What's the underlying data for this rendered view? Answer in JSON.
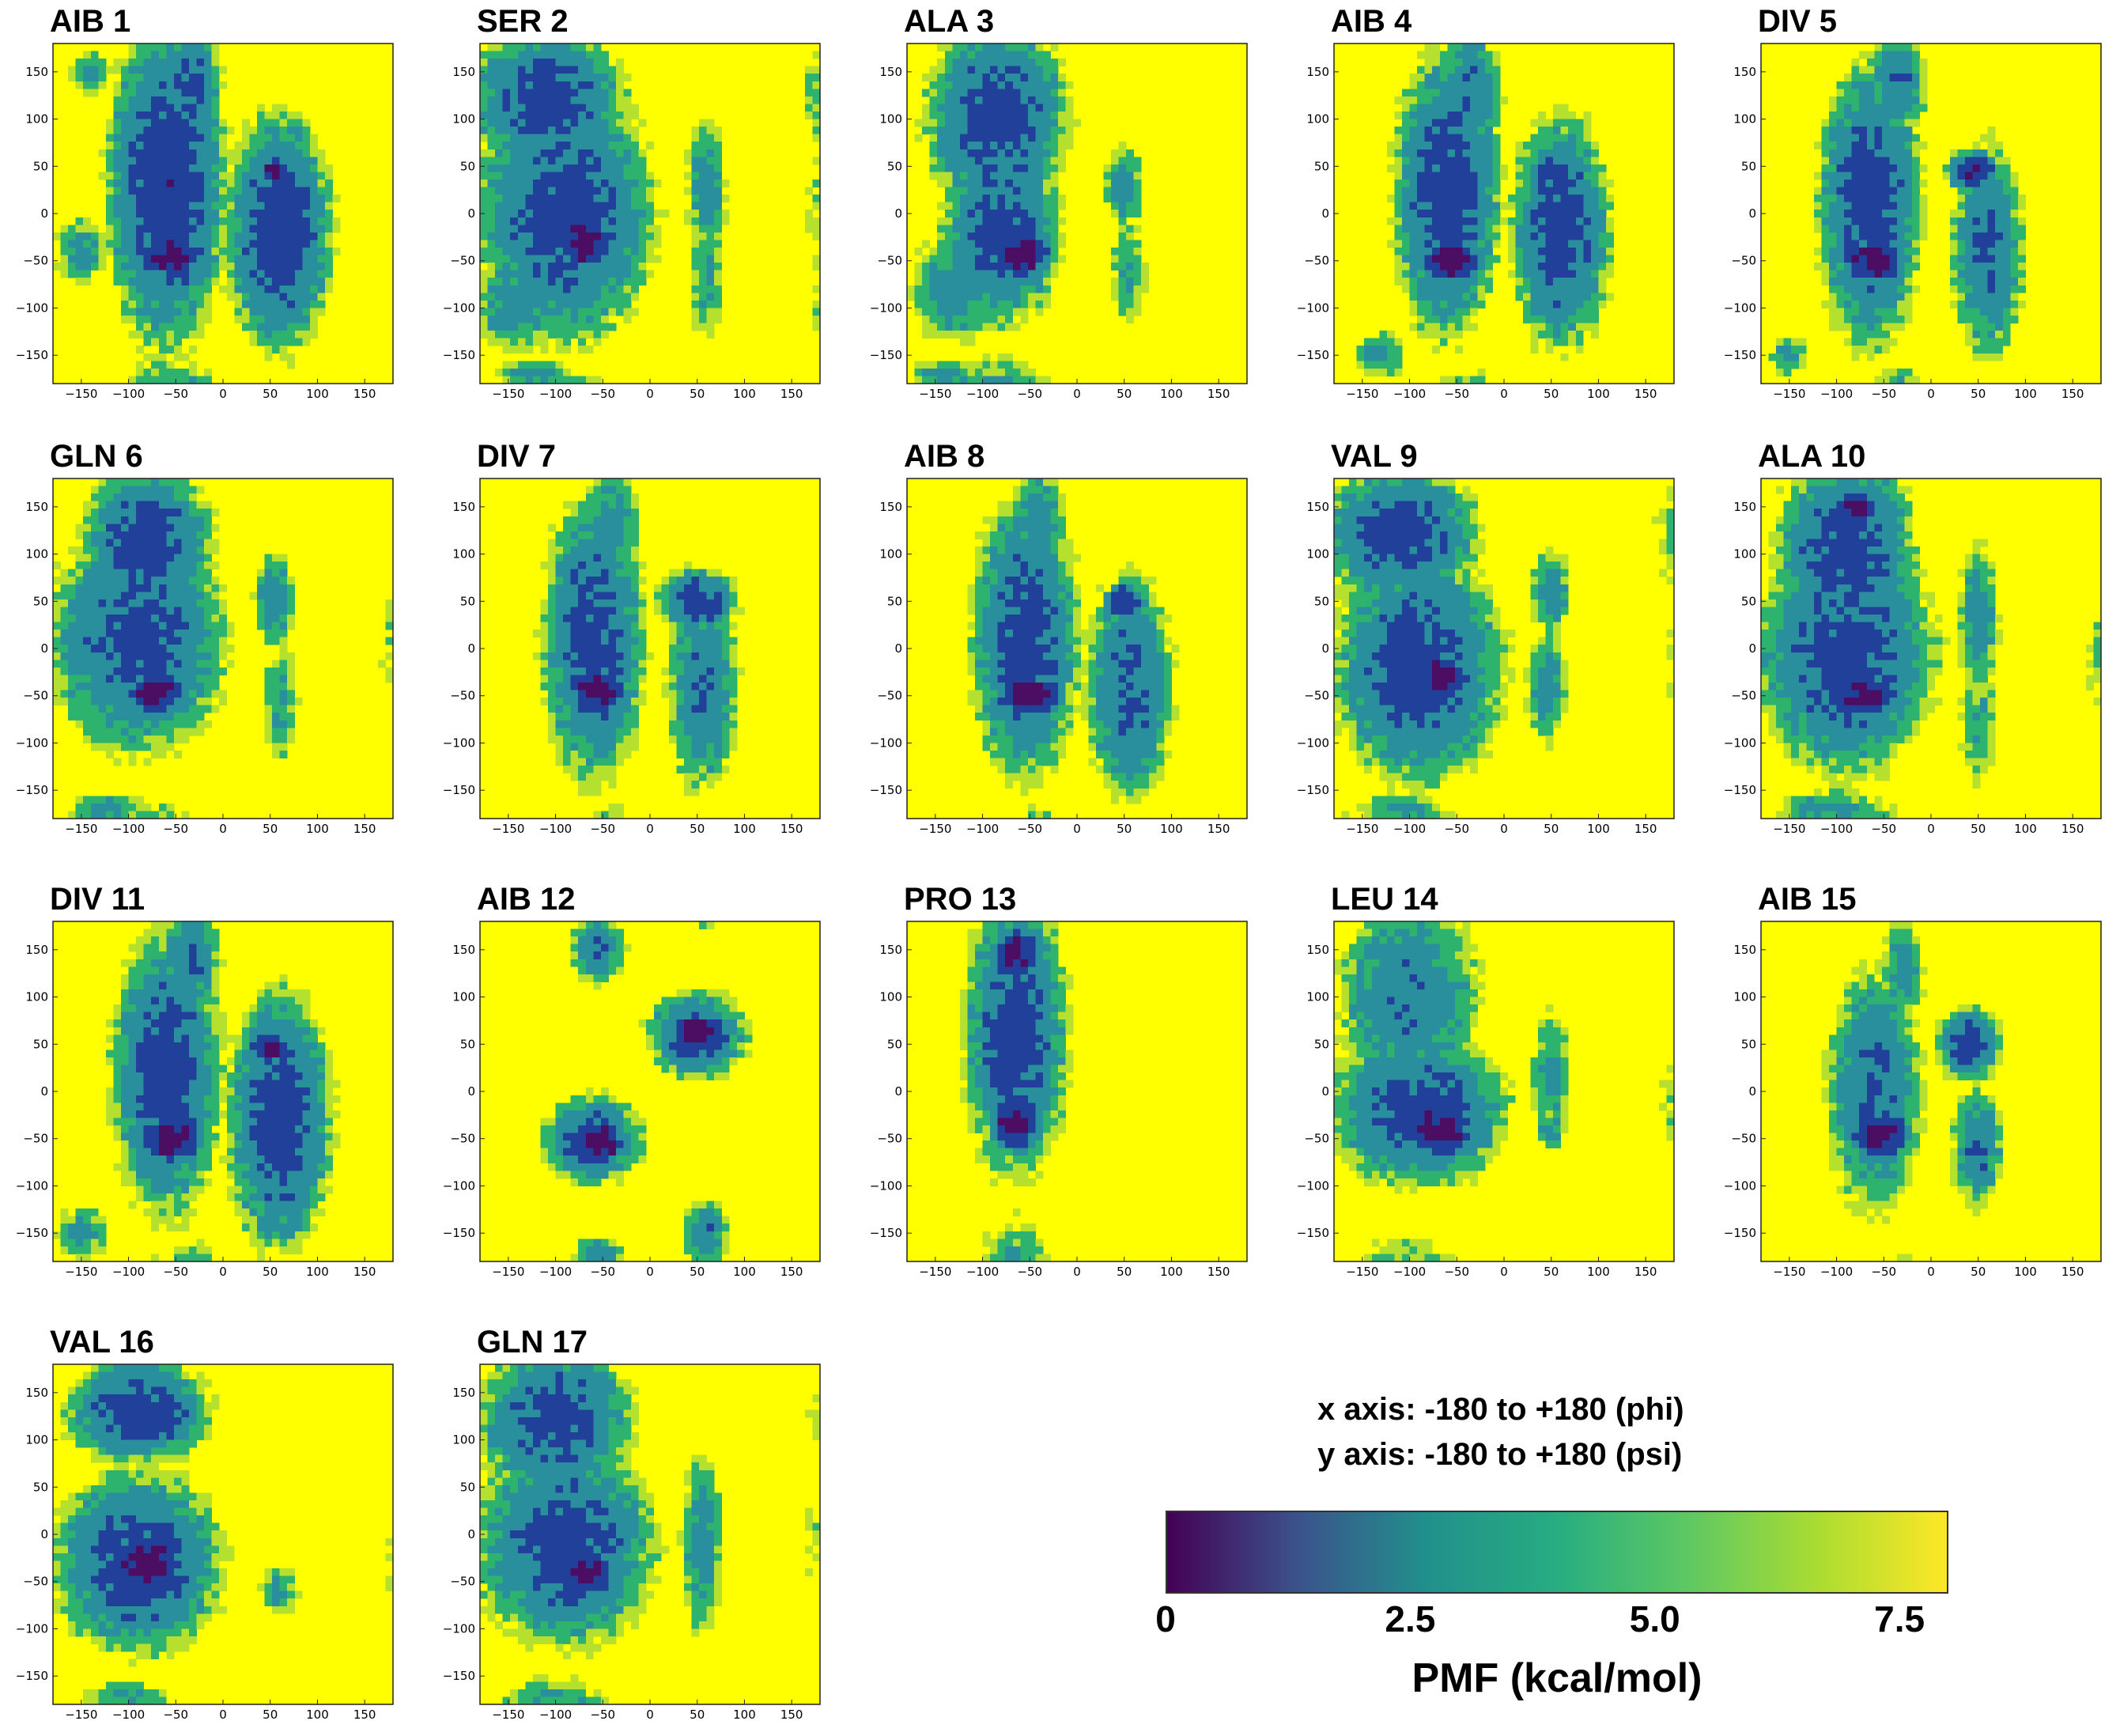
{
  "chart_data": {
    "type": "heatmap",
    "panel_titles": [
      "AIB 1",
      "SER 2",
      "ALA 3",
      "AIB 4",
      "DIV 5",
      "GLN 6",
      "DIV 7",
      "AIB 8",
      "VAL 9",
      "ALA 10",
      "DIV 11",
      "AIB 12",
      "PRO 13",
      "LEU 14",
      "AIB 15",
      "VAL 16",
      "GLN 17"
    ],
    "x_ticks": [
      -150,
      -100,
      -50,
      0,
      50,
      100,
      150
    ],
    "y_ticks": [
      150,
      100,
      50,
      0,
      -50,
      -100,
      -150
    ],
    "x_tick_labels": [
      "−150",
      "−100",
      "−50",
      "0",
      "50",
      "100",
      "150"
    ],
    "y_tick_labels": [
      "150",
      "100",
      "50",
      "0",
      "−50",
      "−100",
      "−150"
    ],
    "xlim": [
      -180,
      180
    ],
    "ylim": [
      -180,
      180
    ],
    "colorbar": {
      "label": "PMF (kcal/mol)",
      "ticks": [
        0,
        2.5,
        5.0,
        7.5
      ],
      "tick_labels": [
        "0",
        "2.5",
        "5.0",
        "7.5"
      ],
      "range": [
        0,
        8
      ],
      "colors": [
        "#440154",
        "#3b528b",
        "#21908c",
        "#27ad81",
        "#5dc863",
        "#aadc32",
        "#fde725"
      ]
    },
    "level_colors": [
      "#4b0e63",
      "#20409a",
      "#2a8f9c",
      "#2db36e",
      "#b5e02d",
      "#ffff00"
    ],
    "panels": [
      {
        "basins": [
          [
            -55,
            -45,
            25,
            18,
            0.2
          ],
          [
            55,
            45,
            14,
            12,
            0.5
          ],
          [
            -60,
            30,
            45,
            120,
            1.5
          ],
          [
            60,
            -20,
            40,
            90,
            1.6
          ],
          [
            -35,
            130,
            25,
            50,
            2.0
          ],
          [
            -150,
            -40,
            25,
            30,
            3.3
          ],
          [
            -140,
            150,
            20,
            20,
            3.4
          ]
        ]
      },
      {
        "basins": [
          [
            -70,
            -30,
            24,
            20,
            0.2
          ],
          [
            -110,
            120,
            60,
            55,
            1.8
          ],
          [
            -90,
            0,
            70,
            100,
            1.9
          ],
          [
            -140,
            -100,
            40,
            40,
            3.0
          ],
          [
            60,
            30,
            18,
            60,
            3.0
          ],
          [
            60,
            -70,
            18,
            60,
            3.6
          ],
          [
            -120,
            -170,
            35,
            14,
            3.2
          ]
        ]
      },
      {
        "basins": [
          [
            -60,
            -45,
            22,
            18,
            0.2
          ],
          [
            -85,
            100,
            55,
            75,
            1.8
          ],
          [
            -80,
            -20,
            45,
            70,
            1.8
          ],
          [
            -130,
            -80,
            40,
            50,
            3.0
          ],
          [
            50,
            30,
            18,
            40,
            3.2
          ],
          [
            55,
            -60,
            18,
            55,
            3.7
          ],
          [
            -140,
            -170,
            30,
            14,
            3.2
          ]
        ]
      },
      {
        "basins": [
          [
            -55,
            -50,
            24,
            18,
            0.2
          ],
          [
            45,
            45,
            14,
            12,
            1.2
          ],
          [
            -60,
            20,
            42,
            110,
            1.8
          ],
          [
            60,
            -20,
            38,
            90,
            1.8
          ],
          [
            -35,
            130,
            25,
            50,
            2.5
          ],
          [
            -130,
            -150,
            25,
            25,
            3.5
          ]
        ]
      },
      {
        "basins": [
          [
            -60,
            -50,
            24,
            18,
            0.2
          ],
          [
            45,
            45,
            20,
            15,
            0.8
          ],
          [
            -65,
            10,
            40,
            110,
            1.8
          ],
          [
            60,
            -40,
            30,
            90,
            2.4
          ],
          [
            -35,
            140,
            25,
            45,
            2.6
          ],
          [
            -150,
            -150,
            20,
            20,
            3.5
          ]
        ]
      },
      {
        "basins": [
          [
            -70,
            -45,
            22,
            18,
            0.2
          ],
          [
            -80,
            110,
            50,
            60,
            1.8
          ],
          [
            -90,
            10,
            70,
            90,
            2.0
          ],
          [
            55,
            50,
            18,
            40,
            2.7
          ],
          [
            60,
            -60,
            18,
            60,
            3.6
          ],
          [
            -120,
            -170,
            35,
            14,
            3.3
          ]
        ]
      },
      {
        "basins": [
          [
            -55,
            -45,
            22,
            18,
            0.2
          ],
          [
            50,
            50,
            30,
            25,
            1.6
          ],
          [
            -60,
            10,
            40,
            110,
            1.9
          ],
          [
            55,
            -40,
            30,
            90,
            2.6
          ],
          [
            -40,
            130,
            25,
            50,
            3.0
          ]
        ]
      },
      {
        "basins": [
          [
            -50,
            -50,
            24,
            18,
            0.2
          ],
          [
            50,
            50,
            14,
            12,
            0.5
          ],
          [
            -55,
            10,
            42,
            110,
            1.9
          ],
          [
            55,
            -40,
            35,
            90,
            2.2
          ],
          [
            -40,
            140,
            25,
            40,
            2.8
          ]
        ]
      },
      {
        "basins": [
          [
            -70,
            -30,
            22,
            20,
            0.2
          ],
          [
            -110,
            120,
            60,
            55,
            1.8
          ],
          [
            -90,
            -20,
            65,
            90,
            1.8
          ],
          [
            50,
            60,
            18,
            40,
            3.0
          ],
          [
            45,
            -40,
            18,
            50,
            3.0
          ],
          [
            -110,
            -170,
            40,
            15,
            3.3
          ]
        ]
      },
      {
        "basins": [
          [
            -70,
            -50,
            22,
            18,
            0.2
          ],
          [
            -90,
            100,
            55,
            80,
            1.9
          ],
          [
            -90,
            -10,
            70,
            90,
            1.9
          ],
          [
            -80,
            150,
            18,
            15,
            0.4
          ],
          [
            50,
            30,
            18,
            70,
            3.0
          ],
          [
            50,
            -80,
            20,
            60,
            3.8
          ],
          [
            -120,
            -170,
            35,
            14,
            3.2
          ]
        ]
      },
      {
        "basins": [
          [
            -55,
            -50,
            24,
            18,
            0.2
          ],
          [
            50,
            45,
            16,
            14,
            0.5
          ],
          [
            -60,
            20,
            42,
            110,
            1.8
          ],
          [
            60,
            -30,
            40,
            100,
            1.7
          ],
          [
            -35,
            140,
            25,
            45,
            2.5
          ],
          [
            -150,
            -150,
            25,
            25,
            3.4
          ]
        ]
      },
      {
        "basins": [
          [
            -55,
            -55,
            22,
            18,
            0.2
          ],
          [
            50,
            60,
            22,
            18,
            0.2
          ],
          [
            -60,
            -50,
            40,
            35,
            2.0
          ],
          [
            50,
            60,
            40,
            35,
            2.0
          ],
          [
            60,
            -150,
            20,
            30,
            2.8
          ],
          [
            -55,
            150,
            25,
            30,
            2.8
          ],
          [
            -55,
            -170,
            25,
            15,
            3.3
          ]
        ]
      },
      {
        "basins": [
          [
            -65,
            145,
            18,
            18,
            0.2
          ],
          [
            -65,
            -35,
            18,
            20,
            0.2
          ],
          [
            -65,
            60,
            40,
            110,
            1.8
          ],
          [
            -65,
            -170,
            25,
            12,
            3.2
          ]
        ]
      },
      {
        "basins": [
          [
            -70,
            -40,
            28,
            20,
            0.2
          ],
          [
            -90,
            -20,
            70,
            60,
            1.9
          ],
          [
            -100,
            100,
            60,
            80,
            2.6
          ],
          [
            50,
            20,
            18,
            60,
            3.3
          ],
          [
            50,
            -40,
            15,
            20,
            3.5
          ]
        ]
      },
      {
        "basins": [
          [
            -55,
            -45,
            22,
            18,
            0.2
          ],
          [
            40,
            50,
            25,
            30,
            1.8
          ],
          [
            -60,
            0,
            40,
            100,
            2.4
          ],
          [
            50,
            -60,
            22,
            50,
            2.6
          ],
          [
            -30,
            130,
            20,
            50,
            3.2
          ]
        ]
      },
      {
        "basins": [
          [
            -80,
            -30,
            28,
            25,
            0.2
          ],
          [
            -90,
            130,
            55,
            40,
            1.7
          ],
          [
            -90,
            -30,
            65,
            70,
            1.8
          ],
          [
            60,
            -60,
            18,
            25,
            3.5
          ],
          [
            -100,
            -170,
            40,
            12,
            3.3
          ]
        ]
      },
      {
        "basins": [
          [
            -70,
            -40,
            24,
            20,
            0.2
          ],
          [
            -100,
            120,
            60,
            60,
            1.9
          ],
          [
            -90,
            -10,
            70,
            80,
            1.9
          ],
          [
            55,
            -10,
            18,
            80,
            3.0
          ],
          [
            -110,
            -170,
            35,
            12,
            3.4
          ]
        ]
      }
    ]
  },
  "notes": {
    "x_axis": "x axis: -180 to +180 (phi)",
    "y_axis": "y axis: -180 to +180 (psi)"
  }
}
